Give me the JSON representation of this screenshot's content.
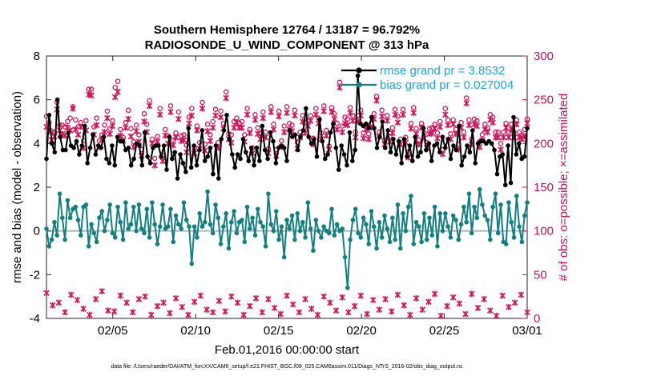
{
  "chart_data": {
    "type": "line",
    "title_line1": "Southern Hemisphere 12764 / 13187 = 96.792%",
    "title_line2": "RADIOSONDE_U_WIND_COMPONENT @ 313 hPa",
    "xlabel": "Feb.01,2016 00:00:00 start",
    "ylabel_left": "rmse and bias (model - observation)",
    "ylabel_right": "# of obs: o=possible; ×=assimilated",
    "footer": "data file: /Users/raeder/DAI/ATM_forcXX/CAM6_setup/f.e21.FHIST_BGC.f09_025.CAM6assim.011/Diags_NTrS_2016-02/obs_diag_output.nc",
    "xlim": [
      1,
      30
    ],
    "ylim_left": [
      -4,
      8
    ],
    "ylim_right": [
      0,
      300
    ],
    "x_ticks": [
      5,
      10,
      15,
      20,
      25,
      30
    ],
    "x_tick_labels": [
      "02/05",
      "02/10",
      "02/15",
      "02/20",
      "02/25",
      "03/01"
    ],
    "y_ticks_left": [
      -4,
      -2,
      0,
      2,
      4,
      6,
      8
    ],
    "y_tick_labels_left": [
      "-4",
      "-2",
      "0",
      "2",
      "4",
      "6",
      "8"
    ],
    "y_ticks_right": [
      0,
      50,
      100,
      150,
      200,
      250,
      300
    ],
    "y_tick_labels_right": [
      "0",
      "50",
      "100",
      "150",
      "200",
      "250",
      "300"
    ],
    "zero_line": 0,
    "colors": {
      "rmse": "#000000",
      "bias": "#128080",
      "obs": "#d4135a",
      "legend_text": "#1aa7e0",
      "zero": "#b4b4b4",
      "right_axis": "#c8105a"
    },
    "legend": [
      {
        "key": "rmse",
        "label": "rmse grand pr = 3.8532"
      },
      {
        "key": "bias",
        "label": "bias grand pr = 0.027004"
      }
    ],
    "series": [
      {
        "name": "rmse",
        "values": [
          3.3,
          5.3,
          4.0,
          3.6,
          6.0,
          4.3,
          3.7,
          3.7,
          4.5,
          3.9,
          3.8,
          4.1,
          3.5,
          3.9,
          4.8,
          3.1,
          3.8,
          4.4,
          3.5,
          3.9,
          3.8,
          4.3,
          3.3,
          3.1,
          3.9,
          3.0,
          4.3,
          4.1,
          4.1,
          3.7,
          3.8,
          3.0,
          3.3,
          4.0,
          3.9,
          3.0,
          4.5,
          3.4,
          3.1,
          3.8,
          3.9,
          3.9,
          3.4,
          3.9,
          2.8,
          4.3,
          3.3,
          3.6,
          2.4,
          3.5,
          3.1,
          2.7,
          4.7,
          2.9,
          3.9,
          3.0,
          3.7,
          4.6,
          3.2,
          3.4,
          3.8,
          2.6,
          3.9,
          2.4,
          4.2,
          4.6,
          5.3,
          4.2,
          3.5,
          2.9,
          3.5,
          3.3,
          4.2,
          3.6,
          3.2,
          3.8,
          3.0,
          3.8,
          3.2,
          4.8,
          3.7,
          3.3,
          4.5,
          4.1,
          3.1,
          3.8,
          3.9,
          3.8,
          3.2,
          4.6,
          4.3,
          4.4,
          3.7,
          4.3,
          4.6,
          5.6,
          4.3,
          4.0,
          4.2,
          3.4,
          5.1,
          4.1,
          3.3,
          3.5,
          4.5,
          4.9,
          3.8,
          2.8,
          3.9,
          3.5,
          3.0,
          4.5,
          3.2,
          3.7,
          7.1,
          4.9,
          4.8,
          4.9,
          4.7,
          5.2,
          4.7,
          3.8,
          4.3,
          5.0,
          3.8,
          4.6,
          3.6,
          4.2,
          3.5,
          4.1,
          3.1,
          4.2,
          3.4,
          3.9,
          3.2,
          4.3,
          3.4,
          3.6,
          4.7,
          3.7,
          4.0,
          3.2,
          3.9,
          4.0,
          3.6,
          4.3,
          3.8,
          4.2,
          3.3,
          3.9,
          3.7,
          4.8,
          3.0,
          3.4,
          3.9,
          3.6,
          4.6,
          3.1,
          4.0,
          4.1,
          4.1,
          4.0,
          4.1,
          4.0,
          3.7,
          2.6,
          3.4,
          3.5,
          2.1,
          3.9,
          2.2,
          5.2,
          3.5,
          4.0,
          3.3,
          3.4,
          4.7
        ],
        "mark": "filled-circle"
      },
      {
        "name": "bias",
        "values": [
          0.1,
          -0.7,
          -0.4,
          0.4,
          -0.2,
          1.7,
          0.6,
          -0.4,
          1.4,
          0.6,
          1.0,
          1.1,
          0.5,
          -0.2,
          1.1,
          1.2,
          -0.7,
          0.3,
          -0.1,
          -0.5,
          0.6,
          0.9,
          0.0,
          0.5,
          1.2,
          -0.1,
          -0.3,
          1.1,
          0.4,
          -0.4,
          1.3,
          0.1,
          0.3,
          1.1,
          0.0,
          1.2,
          0.1,
          -0.1,
          1.0,
          -0.3,
          1.3,
          0.3,
          -0.6,
          0.2,
          1.2,
          0.1,
          0.2,
          1.0,
          -0.5,
          0.7,
          0.3,
          0.1,
          1.3,
          0.5,
          0.2,
          -1.5,
          0.2,
          -0.3,
          0.8,
          0.2,
          0.4,
          1.8,
          0.3,
          -0.1,
          1.2,
          0.6,
          -0.6,
          0.2,
          0.8,
          -0.8,
          0.4,
          0.9,
          -0.1,
          0.4,
          0.5,
          -0.5,
          1.1,
          0.1,
          0.6,
          -0.2,
          1.0,
          0.4,
          0.2,
          -0.7,
          1.7,
          0.3,
          0.0,
          0.9,
          -0.4,
          0.2,
          -1.2,
          0.5,
          0.1,
          0.7,
          -0.4,
          0.8,
          0.0,
          0.4,
          -0.3,
          1.3,
          0.1,
          -0.9,
          0.5,
          0.0,
          -0.3,
          0.2,
          0.0,
          -0.1,
          1.0,
          -0.2,
          0.3,
          0.0,
          0.1,
          -1.2,
          -2.6,
          -0.4,
          0.5,
          1.0,
          -0.1,
          -0.3,
          0.6,
          0.3,
          -0.6,
          0.9,
          0.2,
          -0.8,
          0.4,
          -0.3,
          0.7,
          0.1,
          -0.5,
          0.6,
          -0.4,
          1.2,
          -0.8,
          0.8,
          0.0,
          1.1,
          1.6,
          -0.6,
          0.4,
          0.2,
          -0.5,
          0.8,
          -0.4,
          0.6,
          -0.2,
          1.1,
          -0.7,
          0.8,
          0.0,
          0.8,
          0.2,
          -0.3,
          0.7,
          0.5,
          -0.4,
          0.3,
          1.1,
          0.4,
          1.7,
          -0.1,
          1.1,
          0.6,
          1.9,
          1.2,
          0.7,
          0.5,
          -0.4,
          1.1,
          1.7,
          -0.1,
          1.2,
          -0.5,
          -0.6,
          1.3,
          0.4,
          -0.3,
          1.6,
          0.2,
          -0.5,
          0.7,
          1.3
        ],
        "mark": "filled-circle"
      },
      {
        "name": "obs_possible",
        "values": [
          231,
          224,
          214,
          213,
          247,
          221,
          221,
          219,
          225,
          229,
          242,
          227,
          219,
          224,
          203,
          226,
          262,
          262,
          219,
          229,
          203,
          210,
          221,
          237,
          217,
          226,
          264,
          271,
          216,
          207,
          224,
          238,
          217,
          202,
          221,
          210,
          193,
          234,
          222,
          249,
          205,
          183,
          208,
          240,
          186,
          216,
          209,
          243,
          204,
          212,
          236,
          209,
          210,
          198,
          230,
          240,
          195,
          220,
          201,
          247,
          199,
          222,
          210,
          225,
          239,
          201,
          237,
          223,
          259,
          211,
          210,
          225,
          229,
          223,
          225,
          210,
          240,
          216,
          195,
          233,
          218,
          212,
          236,
          213,
          194,
          242,
          222,
          193,
          237,
          203,
          220,
          242,
          223,
          221,
          238,
          201,
          213,
          232,
          218,
          226,
          232,
          206,
          240,
          229,
          212,
          243,
          215,
          197,
          241,
          234,
          223,
          270,
          220,
          230,
          228,
          241,
          232,
          213,
          232,
          238,
          212,
          222,
          211,
          223,
          234,
          254,
          213,
          238,
          204,
          232,
          208,
          218,
          239,
          231,
          205,
          239,
          207,
          190,
          223,
          241,
          217,
          204,
          223,
          212,
          201,
          217,
          218,
          222,
          212,
          225,
          193,
          240,
          227,
          211,
          227,
          216,
          199,
          224,
          213,
          252,
          227,
          205,
          228,
          226,
          202,
          210,
          222,
          218,
          233,
          230,
          213,
          213,
          200,
          213,
          223,
          213,
          222,
          213,
          227,
          213,
          210,
          216,
          228
        ],
        "mark": "open-circle"
      },
      {
        "name": "obs_assimilated",
        "values": [
          219,
          214,
          204,
          208,
          239,
          215,
          211,
          209,
          218,
          215,
          240,
          216,
          210,
          219,
          195,
          215,
          256,
          255,
          210,
          221,
          196,
          205,
          213,
          229,
          211,
          220,
          253,
          259,
          209,
          203,
          218,
          228,
          208,
          196,
          214,
          202,
          186,
          225,
          213,
          243,
          200,
          175,
          202,
          233,
          180,
          209,
          200,
          236,
          198,
          207,
          228,
          203,
          204,
          190,
          223,
          232,
          189,
          215,
          194,
          240,
          192,
          214,
          203,
          218,
          232,
          195,
          230,
          217,
          252,
          205,
          201,
          218,
          224,
          218,
          218,
          202,
          233,
          212,
          189,
          227,
          211,
          205,
          229,
          207,
          189,
          236,
          216,
          186,
          231,
          196,
          213,
          235,
          216,
          214,
          232,
          194,
          207,
          225,
          212,
          220,
          226,
          199,
          233,
          223,
          205,
          237,
          209,
          193,
          236,
          228,
          216,
          264,
          213,
          223,
          221,
          235,
          226,
          207,
          225,
          232,
          206,
          216,
          205,
          218,
          228,
          249,
          208,
          231,
          199,
          226,
          202,
          212,
          233,
          224,
          199,
          233,
          201,
          184,
          217,
          235,
          211,
          199,
          218,
          206,
          195,
          211,
          212,
          217,
          206,
          219,
          188,
          233,
          221,
          205,
          222,
          211,
          193,
          218,
          207,
          246,
          221,
          199,
          222,
          220,
          196,
          204,
          216,
          213,
          227,
          224,
          207,
          207,
          193,
          207,
          218,
          207,
          216,
          207,
          222,
          207,
          205,
          208,
          223
        ],
        "mark": "cross"
      },
      {
        "name": "obs_low",
        "values": [
          29,
          15,
          18,
          7,
          27,
          21,
          11,
          4,
          22,
          31,
          9,
          8,
          26,
          18,
          7,
          22,
          25,
          4,
          14,
          18,
          6,
          23,
          13,
          4,
          19,
          26,
          10,
          7,
          20,
          8,
          25,
          18,
          4,
          14,
          23,
          7,
          22,
          12,
          5,
          26,
          16,
          7,
          22,
          11,
          4,
          25,
          18,
          9,
          24,
          7,
          14,
          26,
          5,
          21,
          10,
          22,
          8,
          27,
          15,
          4,
          23,
          10,
          19,
          28,
          3,
          14,
          24,
          17,
          5,
          28,
          12,
          22,
          9,
          3,
          26,
          13,
          18,
          27,
          7
        ],
        "mark": "cross"
      }
    ]
  }
}
